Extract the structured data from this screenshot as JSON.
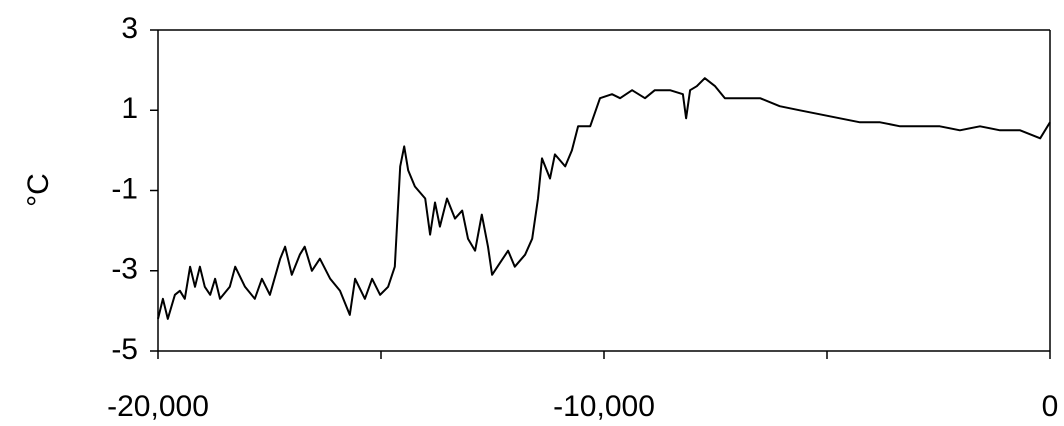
{
  "chart_data": {
    "type": "line",
    "y_label": "°C",
    "color": "#000000",
    "x": [
      -20000,
      -19890,
      -19780,
      -19620,
      -19510,
      -19400,
      -19280,
      -19170,
      -19060,
      -18950,
      -18830,
      -18720,
      -18610,
      -18390,
      -18270,
      -18050,
      -17830,
      -17670,
      -17490,
      -17260,
      -17150,
      -17000,
      -16820,
      -16710,
      -16550,
      -16370,
      -16140,
      -15920,
      -15700,
      -15580,
      -15360,
      -15200,
      -15020,
      -14840,
      -14690,
      -14570,
      -14480,
      -14390,
      -14240,
      -14010,
      -13900,
      -13790,
      -13680,
      -13520,
      -13340,
      -13180,
      -13050,
      -12890,
      -12740,
      -12600,
      -12510,
      -12330,
      -12150,
      -12000,
      -11770,
      -11610,
      -11480,
      -11390,
      -11210,
      -11100,
      -10870,
      -10720,
      -10580,
      -10310,
      -10090,
      -9820,
      -9640,
      -9370,
      -9080,
      -8860,
      -8520,
      -8230,
      -8160,
      -8070,
      -7920,
      -7740,
      -7510,
      -7290,
      -6950,
      -6500,
      -6060,
      -5610,
      -5160,
      -4710,
      -4260,
      -3810,
      -3360,
      -2910,
      -2470,
      -2020,
      -1570,
      -1120,
      -670,
      -220,
      0
    ],
    "values": [
      -4.2,
      -3.7,
      -4.2,
      -3.6,
      -3.5,
      -3.7,
      -2.9,
      -3.4,
      -2.9,
      -3.4,
      -3.6,
      -3.2,
      -3.7,
      -3.4,
      -2.9,
      -3.4,
      -3.7,
      -3.2,
      -3.6,
      -2.7,
      -2.4,
      -3.1,
      -2.6,
      -2.4,
      -3.0,
      -2.7,
      -3.2,
      -3.5,
      -4.1,
      -3.2,
      -3.7,
      -3.2,
      -3.6,
      -3.4,
      -2.9,
      -0.4,
      0.1,
      -0.5,
      -0.9,
      -1.2,
      -2.1,
      -1.3,
      -1.9,
      -1.2,
      -1.7,
      -1.5,
      -2.2,
      -2.5,
      -1.6,
      -2.4,
      -3.1,
      -2.8,
      -2.5,
      -2.9,
      -2.6,
      -2.2,
      -1.2,
      -0.2,
      -0.7,
      -0.1,
      -0.4,
      0.0,
      0.6,
      0.6,
      1.3,
      1.4,
      1.3,
      1.5,
      1.3,
      1.5,
      1.5,
      1.4,
      0.8,
      1.5,
      1.6,
      1.8,
      1.6,
      1.3,
      1.3,
      1.3,
      1.1,
      1.0,
      0.9,
      0.8,
      0.7,
      0.7,
      0.6,
      0.6,
      0.6,
      0.5,
      0.6,
      0.5,
      0.5,
      0.3,
      0.7
    ],
    "xlim": [
      -20000,
      0
    ],
    "ylim": [
      -5,
      3
    ],
    "xticks": [
      {
        "value": -20000,
        "label": "-20,000"
      },
      {
        "value": -10000,
        "label": "-10,000"
      },
      0
    ],
    "xminorticks": [
      -15000,
      -5000
    ],
    "yticks": [
      3,
      1,
      -1,
      -3,
      -5
    ],
    "frame": true
  }
}
